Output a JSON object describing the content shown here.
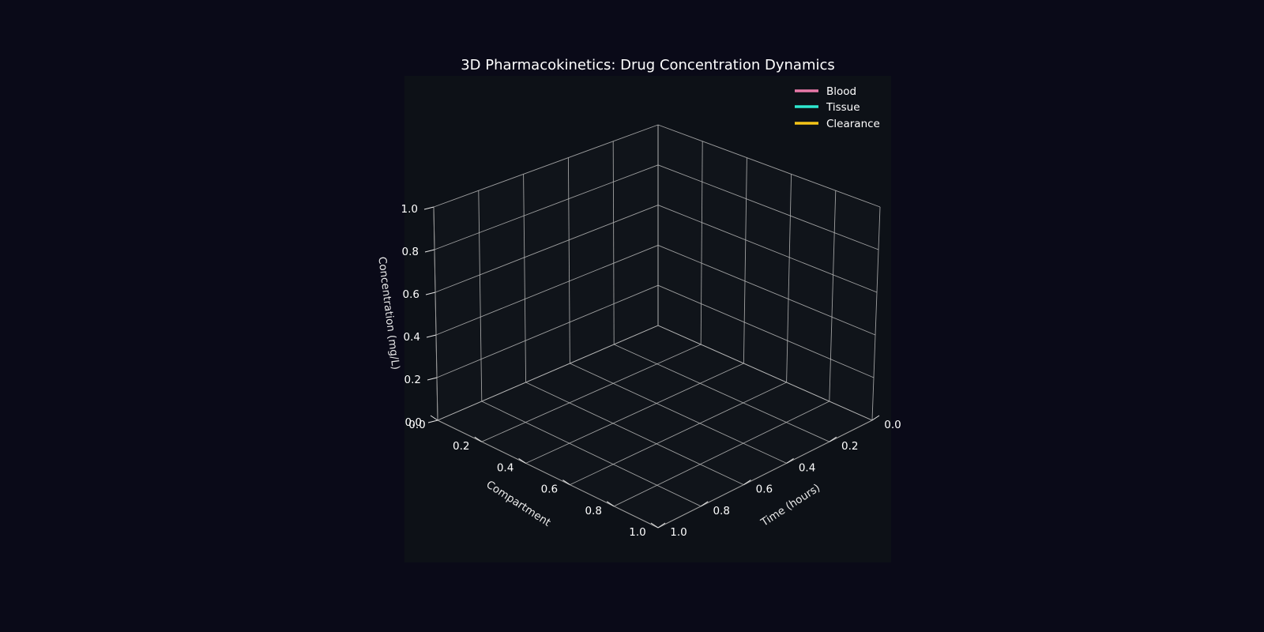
{
  "colors": {
    "figure_background": "#0a0a18",
    "axes_background": "#0d1117",
    "text": "#ffffff",
    "grid": "#b8b8b8"
  },
  "chart_data": {
    "type": "line",
    "projection": "3d",
    "title": "3D Pharmacokinetics: Drug Concentration Dynamics",
    "xlabel": "Time (hours)",
    "ylabel": "Compartment",
    "zlabel": "Concentration (mg/L)",
    "xlim": [
      0,
      1
    ],
    "ylim": [
      0,
      1
    ],
    "zlim": [
      0,
      1
    ],
    "x_ticks": [
      "0.0",
      "0.2",
      "0.4",
      "0.6",
      "0.8",
      "1.0"
    ],
    "y_ticks": [
      "0.0",
      "0.2",
      "0.4",
      "0.6",
      "0.8",
      "1.0"
    ],
    "z_ticks": [
      "0.0",
      "0.2",
      "0.4",
      "0.6",
      "0.8",
      "1.0"
    ],
    "grid": true,
    "legend_position": "top-right",
    "series": [
      {
        "name": "Blood",
        "color": "#e879a8",
        "x": [],
        "y": [],
        "z": []
      },
      {
        "name": "Tissue",
        "color": "#2ee8d0",
        "x": [],
        "y": [],
        "z": []
      },
      {
        "name": "Clearance",
        "color": "#f5c518",
        "x": [],
        "y": [],
        "z": []
      }
    ]
  }
}
